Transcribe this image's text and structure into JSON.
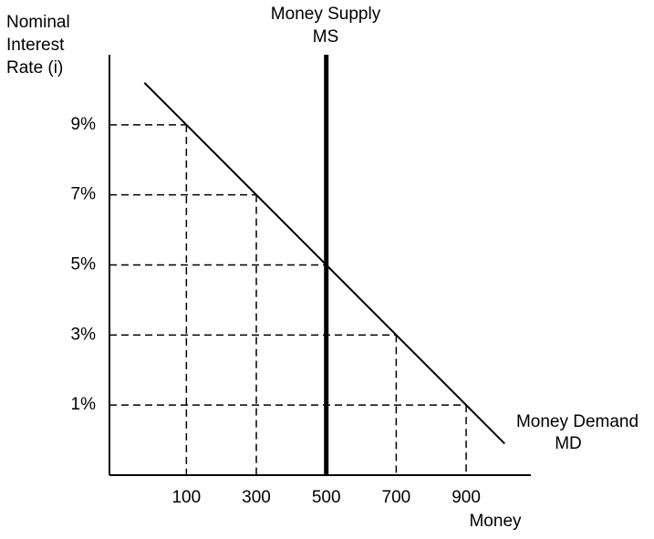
{
  "chart_data": {
    "type": "line",
    "ylabel_lines": [
      "Nominal",
      "Interest",
      "Rate (i)"
    ],
    "xlabel": "Money",
    "xlim": [
      -120,
      1085
    ],
    "ylim": [
      -1,
      11
    ],
    "xticks": [
      100,
      300,
      500,
      700,
      900
    ],
    "yticks": [
      {
        "value": 1,
        "label": "1%"
      },
      {
        "value": 3,
        "label": "3%"
      },
      {
        "value": 5,
        "label": "5%"
      },
      {
        "value": 7,
        "label": "7%"
      },
      {
        "value": 9,
        "label": "9%"
      }
    ],
    "series": [
      {
        "name": "Money Supply",
        "abbr": "MS",
        "color": "#000000",
        "x": [
          500,
          500
        ],
        "values": [
          -1,
          11
        ]
      },
      {
        "name": "Money Demand",
        "abbr": "MD",
        "color": "#000000",
        "x": [
          -20,
          1010
        ],
        "values": [
          10.2,
          -0.1
        ]
      }
    ],
    "guides": {
      "x": [
        100,
        300,
        500,
        700,
        900
      ],
      "y": [
        9,
        7,
        5,
        3,
        1
      ]
    }
  }
}
